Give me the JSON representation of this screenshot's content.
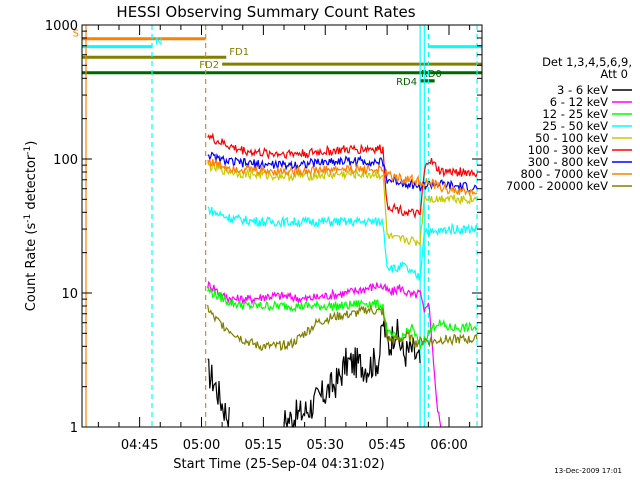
{
  "chart_data": {
    "type": "line",
    "title": "HESSI Observing Summary Count Rates",
    "xlabel": "Start Time (25-Sep-04 04:31:02)",
    "ylabel": "Count Rate (s⁻¹ detector⁻¹)",
    "ylabel_main": "Count Rate (s",
    "ylabel_sup1": "-1",
    "ylabel_mid": " detector",
    "ylabel_sup2": "-1",
    "ylabel_end": ")",
    "yscale": "log",
    "ylim": [
      1,
      1000
    ],
    "xlim_minutes": [
      271.03,
      368.0
    ],
    "yticks": [
      {
        "value": 1,
        "label": "1"
      },
      {
        "value": 10,
        "label": "10"
      },
      {
        "value": 100,
        "label": "100"
      },
      {
        "value": 1000,
        "label": "1000"
      }
    ],
    "xticks": [
      {
        "minutes": 285,
        "label": "04:45"
      },
      {
        "minutes": 300,
        "label": "05:00"
      },
      {
        "minutes": 315,
        "label": "05:15"
      },
      {
        "minutes": 330,
        "label": "05:30"
      },
      {
        "minutes": 345,
        "label": "05:45"
      },
      {
        "minutes": 360,
        "label": "06:00"
      }
    ],
    "legend_title": [
      "Det 1,3,4,5,6,9,",
      "Att 0"
    ],
    "legend_placement": "right",
    "timestamp": "13-Dec-2009 17:01",
    "flag_bars": [
      {
        "label": "S",
        "color": "#ff8000",
        "y_value": 790,
        "x_start": 271.03,
        "x_end": 301.0,
        "label_pos": "left"
      },
      {
        "label": "N",
        "color": "#00ffff",
        "y_value": 690,
        "x_start": 271.03,
        "x_end": 288.0,
        "label_pos": "right"
      },
      {
        "label": "",
        "color": "#00ffff",
        "y_value": 690,
        "x_start": 355.0,
        "x_end": 368.0,
        "label_pos": "none"
      },
      {
        "label": "FD1",
        "color": "#808000",
        "y_value": 575,
        "x_start": 271.03,
        "x_end": 306.0,
        "label_pos": "right"
      },
      {
        "label": "FD2",
        "color": "#808000",
        "y_value": 510,
        "x_start": 305.0,
        "x_end": 368.0,
        "label_pos": "left"
      },
      {
        "label": "",
        "color": "#006400",
        "y_value": 440,
        "x_start": 271.03,
        "x_end": 368.0,
        "label_pos": "none"
      },
      {
        "label": "RD0",
        "color": "#006400",
        "y_value": 383,
        "x_start": 353.0,
        "x_end": 356.5,
        "label_pos": "above"
      },
      {
        "label": "RD4",
        "color": "#006400",
        "y_value": 383,
        "x_start": 353.0,
        "x_end": 356.5,
        "label_pos": "left"
      }
    ],
    "event_lines": [
      {
        "minutes": 272.0,
        "color": "#ff8000",
        "style": "solid"
      },
      {
        "minutes": 288.0,
        "color": "#00ffff",
        "style": "dashed"
      },
      {
        "minutes": 301.0,
        "color": "#ff8000",
        "style": "dashed"
      },
      {
        "minutes": 353.0,
        "color": "#00ffff",
        "style": "solid"
      },
      {
        "minutes": 354.0,
        "color": "#00ffff",
        "style": "solid"
      },
      {
        "minutes": 355.0,
        "color": "#00ffff",
        "style": "dashed"
      },
      {
        "minutes": 366.8,
        "color": "#00ffff",
        "style": "dashed"
      }
    ],
    "series": [
      {
        "name": "3 - 6 keV",
        "color": "#000000",
        "breaks_after": [
          307
        ],
        "points": [
          [
            301.5,
            2.6
          ],
          [
            303,
            2.2
          ],
          [
            305,
            1.5
          ],
          [
            307,
            1.1
          ],
          [
            320,
            1.1
          ],
          [
            325,
            1.3
          ],
          [
            330,
            1.8
          ],
          [
            333,
            2.2
          ],
          [
            335,
            3.0
          ],
          [
            338,
            3.0
          ],
          [
            340,
            2.8
          ],
          [
            343,
            3.2
          ],
          [
            344,
            6.0
          ],
          [
            345.5,
            4.0
          ],
          [
            347,
            5.5
          ],
          [
            349,
            3.5
          ],
          [
            351,
            3.8
          ],
          [
            353,
            3.0
          ]
        ]
      },
      {
        "name": "6 - 12 keV",
        "color": "#ff00ff",
        "breaks_after": [],
        "points": [
          [
            301.5,
            11.5
          ],
          [
            303,
            11.0
          ],
          [
            305,
            9.5
          ],
          [
            308,
            9.0
          ],
          [
            312,
            9.0
          ],
          [
            316,
            9.5
          ],
          [
            320,
            9.5
          ],
          [
            325,
            9.0
          ],
          [
            330,
            9.5
          ],
          [
            335,
            10.0
          ],
          [
            338,
            10.5
          ],
          [
            341,
            11.0
          ],
          [
            343,
            11.5
          ],
          [
            346,
            10.0
          ],
          [
            348,
            11.0
          ],
          [
            351,
            9.5
          ],
          [
            353,
            10.0
          ],
          [
            354,
            7.0
          ],
          [
            355,
            9.0
          ],
          [
            356,
            4.0
          ],
          [
            357,
            1.5
          ],
          [
            358,
            1.0
          ]
        ]
      },
      {
        "name": "12 - 25 keV",
        "color": "#00ff00",
        "breaks_after": [],
        "points": [
          [
            301.5,
            10.5
          ],
          [
            304,
            9.5
          ],
          [
            307,
            8.5
          ],
          [
            311,
            8.0
          ],
          [
            315,
            8.0
          ],
          [
            320,
            8.0
          ],
          [
            325,
            8.0
          ],
          [
            330,
            8.0
          ],
          [
            335,
            8.0
          ],
          [
            340,
            8.5
          ],
          [
            344,
            8.0
          ],
          [
            345,
            5.0
          ],
          [
            348,
            4.5
          ],
          [
            351,
            5.5
          ],
          [
            353,
            4.0
          ],
          [
            355,
            5.0
          ],
          [
            357,
            6.0
          ],
          [
            360,
            5.5
          ],
          [
            364,
            5.5
          ],
          [
            366.8,
            5.5
          ]
        ]
      },
      {
        "name": "25 - 50 keV",
        "color": "#00ffff",
        "breaks_after": [],
        "points": [
          [
            301.5,
            43
          ],
          [
            303,
            40
          ],
          [
            306,
            37
          ],
          [
            310,
            35
          ],
          [
            315,
            34
          ],
          [
            320,
            34
          ],
          [
            325,
            34
          ],
          [
            330,
            34
          ],
          [
            335,
            34
          ],
          [
            340,
            34
          ],
          [
            344,
            34
          ],
          [
            345,
            16
          ],
          [
            347,
            15
          ],
          [
            349,
            16
          ],
          [
            351,
            14
          ],
          [
            353,
            13
          ],
          [
            354,
            30
          ],
          [
            356,
            28
          ],
          [
            360,
            30
          ],
          [
            364,
            30
          ],
          [
            366.8,
            30
          ]
        ]
      },
      {
        "name": "50 - 100 keV",
        "color": "#c8c800",
        "breaks_after": [],
        "points": [
          [
            301.5,
            90
          ],
          [
            303,
            86
          ],
          [
            306,
            82
          ],
          [
            310,
            78
          ],
          [
            315,
            76
          ],
          [
            320,
            75
          ],
          [
            325,
            75
          ],
          [
            330,
            76
          ],
          [
            335,
            77
          ],
          [
            340,
            77
          ],
          [
            344,
            76
          ],
          [
            345,
            27
          ],
          [
            347,
            25
          ],
          [
            350,
            25
          ],
          [
            352,
            24
          ],
          [
            353,
            24
          ],
          [
            354,
            52
          ],
          [
            357,
            50
          ],
          [
            360,
            52
          ],
          [
            364,
            50
          ],
          [
            366.8,
            50
          ]
        ]
      },
      {
        "name": "100 - 300 keV",
        "color": "#ff0000",
        "breaks_after": [],
        "points": [
          [
            301.5,
            155
          ],
          [
            302,
            145
          ],
          [
            304,
            135
          ],
          [
            306,
            128
          ],
          [
            308,
            120
          ],
          [
            312,
            113
          ],
          [
            316,
            110
          ],
          [
            320,
            110
          ],
          [
            325,
            110
          ],
          [
            330,
            114
          ],
          [
            335,
            117
          ],
          [
            338,
            118
          ],
          [
            340,
            120
          ],
          [
            344,
            118
          ],
          [
            345,
            45
          ],
          [
            347,
            43
          ],
          [
            350,
            40
          ],
          [
            353,
            38
          ],
          [
            354,
            78
          ],
          [
            355,
            100
          ],
          [
            356,
            93
          ],
          [
            358,
            80
          ],
          [
            360,
            80
          ],
          [
            364,
            80
          ],
          [
            366.8,
            78
          ]
        ]
      },
      {
        "name": "300 - 800 keV",
        "color": "#0000ff",
        "breaks_after": [],
        "points": [
          [
            301.5,
            110
          ],
          [
            303,
            102
          ],
          [
            306,
            96
          ],
          [
            310,
            93
          ],
          [
            315,
            91
          ],
          [
            320,
            90
          ],
          [
            325,
            92
          ],
          [
            330,
            95
          ],
          [
            335,
            97
          ],
          [
            340,
            96
          ],
          [
            344,
            94
          ],
          [
            345,
            70
          ],
          [
            348,
            68
          ],
          [
            351,
            65
          ],
          [
            353,
            62
          ],
          [
            356,
            65
          ],
          [
            359,
            64
          ],
          [
            362,
            62
          ],
          [
            364,
            62
          ],
          [
            366.8,
            60
          ]
        ]
      },
      {
        "name": "800 - 7000 keV",
        "color": "#ff8000",
        "breaks_after": [],
        "points": [
          [
            301.5,
            98
          ],
          [
            303,
            93
          ],
          [
            306,
            88
          ],
          [
            310,
            84
          ],
          [
            315,
            82
          ],
          [
            320,
            81
          ],
          [
            325,
            82
          ],
          [
            330,
            83
          ],
          [
            335,
            84
          ],
          [
            340,
            84
          ],
          [
            344,
            82
          ],
          [
            345,
            76
          ],
          [
            348,
            72
          ],
          [
            351,
            70
          ],
          [
            353,
            68
          ],
          [
            356,
            65
          ],
          [
            359,
            60
          ],
          [
            362,
            58
          ],
          [
            364,
            57
          ],
          [
            366.8,
            56
          ]
        ]
      },
      {
        "name": "7000 - 20000 keV",
        "color": "#808000",
        "breaks_after": [],
        "points": [
          [
            301.5,
            7.8
          ],
          [
            303,
            6.5
          ],
          [
            306,
            5.5
          ],
          [
            308,
            5.0
          ],
          [
            310,
            4.5
          ],
          [
            314,
            4.0
          ],
          [
            318,
            4.0
          ],
          [
            322,
            4.2
          ],
          [
            325,
            5.0
          ],
          [
            328,
            6.0
          ],
          [
            331,
            6.5
          ],
          [
            334,
            6.8
          ],
          [
            337,
            7.0
          ],
          [
            340,
            7.5
          ],
          [
            344,
            7.2
          ],
          [
            345,
            4.5
          ],
          [
            348,
            4.5
          ],
          [
            350,
            4.8
          ],
          [
            352,
            4.2
          ],
          [
            354,
            4.5
          ],
          [
            356,
            4.3
          ],
          [
            358,
            4.5
          ],
          [
            360,
            4.5
          ],
          [
            364,
            4.5
          ],
          [
            366.8,
            4.5
          ]
        ]
      }
    ]
  }
}
